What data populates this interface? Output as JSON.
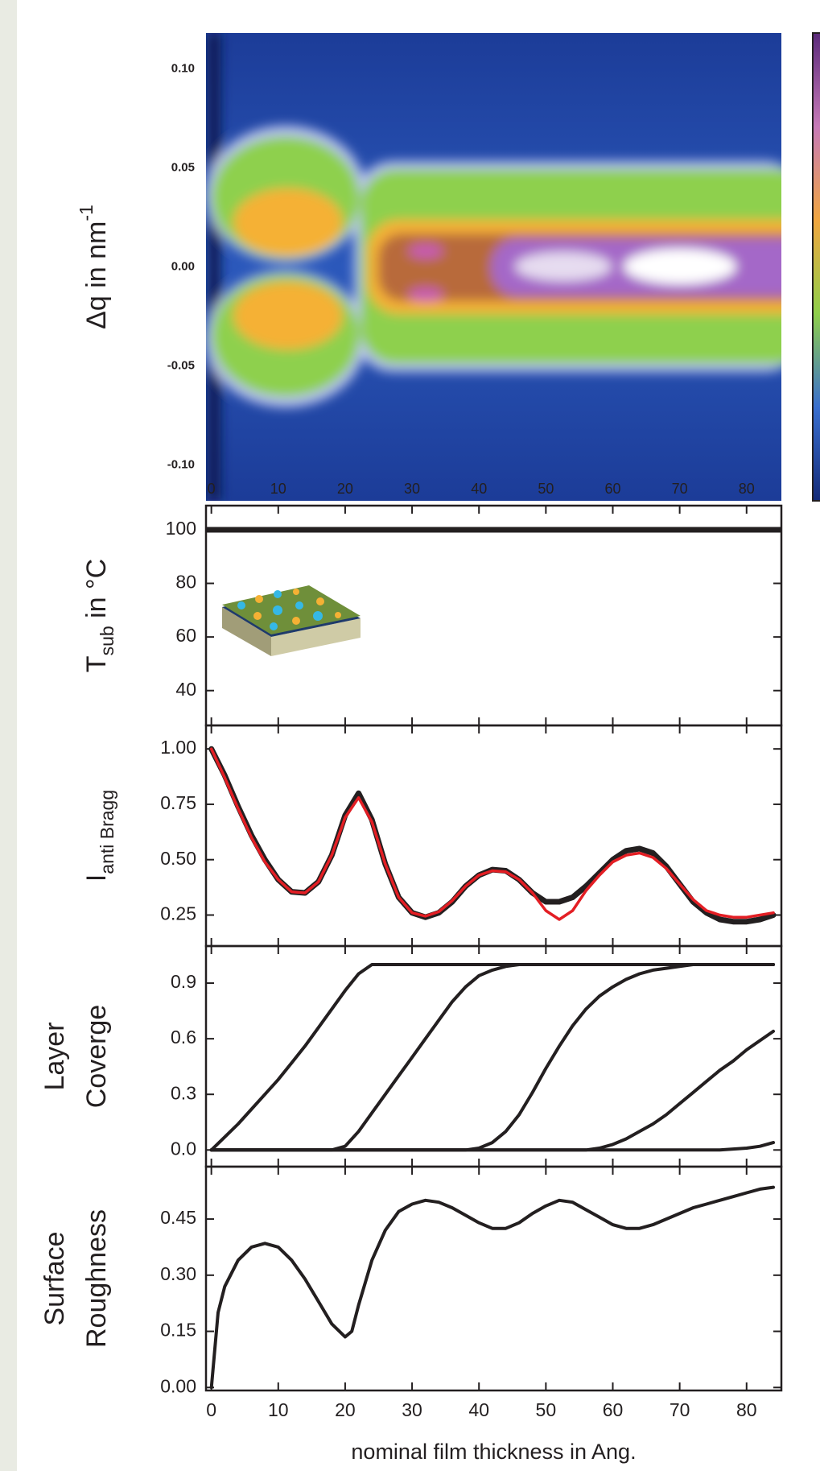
{
  "chart_data": [
    {
      "type": "heatmap",
      "ylabel": "Δq in nm",
      "ylabel_sup": "-1",
      "xlim": [
        -0.8,
        85.2
      ],
      "xticks": [
        0,
        10,
        20,
        30,
        40,
        50,
        60,
        70,
        80
      ],
      "xtick_labels": true,
      "xtick_label_color": "#7f93c4",
      "ylim": [
        -0.118,
        0.118
      ],
      "yticks": [
        {
          "value": -0.1,
          "label": "-0.10"
        },
        {
          "value": -0.05,
          "label": "-0.05"
        },
        {
          "value": 0,
          "label": "0.00"
        },
        {
          "value": 0.05,
          "label": "0.05"
        },
        {
          "value": 0.1,
          "label": "0.10"
        }
      ]
    },
    {
      "type": "line",
      "ylabel": "T",
      "ylabel_sub": "sub",
      "ylabel_suffix": " in °C",
      "xlim": [
        -0.8,
        85.2
      ],
      "xticks": [
        0,
        10,
        20,
        30,
        40,
        50,
        60,
        70,
        80
      ],
      "xtick_labels": false,
      "ylim": [
        27,
        109
      ],
      "yticks": [
        40,
        60,
        80,
        100
      ],
      "x": [
        -0.8,
        85.2
      ],
      "series": [
        {
          "color": "#231f20",
          "width": 7,
          "values": [
            100,
            100
          ]
        }
      ]
    },
    {
      "type": "line",
      "ylabel": "I",
      "ylabel_sub": "anti Bragg",
      "xlim": [
        -0.8,
        85.2
      ],
      "xticks": [
        0,
        10,
        20,
        30,
        40,
        50,
        60,
        70,
        80
      ],
      "xtick_labels": false,
      "ylim": [
        0.11,
        1.106
      ],
      "yticks": [
        0.25,
        {
          "value": 0.5,
          "label": "0.50"
        },
        0.75,
        {
          "value": 1,
          "label": "1.00"
        }
      ],
      "x": [
        0,
        2,
        4,
        6,
        8,
        10,
        12,
        14,
        16,
        18,
        20,
        22,
        24,
        26,
        28,
        30,
        32,
        34,
        36,
        38,
        40,
        42,
        44,
        46,
        48,
        50,
        52,
        54,
        56,
        58,
        60,
        62,
        64,
        66,
        68,
        70,
        72,
        74,
        76,
        78,
        80,
        82,
        84
      ],
      "series": [
        {
          "color": "#231f20",
          "width": 7,
          "values": [
            1.0,
            0.88,
            0.74,
            0.61,
            0.5,
            0.41,
            0.355,
            0.35,
            0.4,
            0.52,
            0.7,
            0.8,
            0.68,
            0.48,
            0.33,
            0.26,
            0.24,
            0.26,
            0.31,
            0.38,
            0.43,
            0.455,
            0.45,
            0.41,
            0.35,
            0.31,
            0.31,
            0.33,
            0.38,
            0.44,
            0.5,
            0.54,
            0.55,
            0.53,
            0.47,
            0.39,
            0.31,
            0.26,
            0.23,
            0.22,
            0.22,
            0.23,
            0.25
          ]
        },
        {
          "color": "#e31e24",
          "width": 3.5,
          "values": [
            1.0,
            0.87,
            0.73,
            0.6,
            0.49,
            0.41,
            0.355,
            0.35,
            0.4,
            0.52,
            0.69,
            0.78,
            0.67,
            0.48,
            0.33,
            0.26,
            0.245,
            0.265,
            0.315,
            0.38,
            0.43,
            0.45,
            0.445,
            0.41,
            0.35,
            0.27,
            0.23,
            0.27,
            0.36,
            0.43,
            0.49,
            0.52,
            0.53,
            0.51,
            0.46,
            0.39,
            0.32,
            0.27,
            0.25,
            0.24,
            0.24,
            0.25,
            0.26
          ]
        }
      ]
    },
    {
      "type": "line",
      "ylabel": [
        "Layer",
        "Coverge"
      ],
      "xlim": [
        -0.8,
        85.2
      ],
      "xticks": [
        0,
        10,
        20,
        30,
        40,
        50,
        60,
        70,
        80
      ],
      "xtick_labels": false,
      "ylim": [
        -0.09,
        1.1
      ],
      "yticks": [
        {
          "value": 0,
          "label": "0.0"
        },
        0.3,
        0.6,
        0.9
      ],
      "x": [
        0,
        2,
        4,
        6,
        8,
        10,
        12,
        14,
        16,
        18,
        20,
        22,
        24,
        26,
        28,
        30,
        32,
        34,
        36,
        38,
        40,
        42,
        44,
        46,
        48,
        50,
        52,
        54,
        56,
        58,
        60,
        62,
        64,
        66,
        68,
        70,
        72,
        74,
        76,
        78,
        80,
        82,
        84
      ],
      "series": [
        {
          "color": "#231f20",
          "width": 4,
          "values": [
            0,
            0.07,
            0.14,
            0.22,
            0.3,
            0.38,
            0.47,
            0.56,
            0.66,
            0.76,
            0.86,
            0.95,
            1,
            1,
            1,
            1,
            1,
            1,
            1,
            1,
            1,
            1,
            1,
            1,
            1,
            1,
            1,
            1,
            1,
            1,
            1,
            1,
            1,
            1,
            1,
            1,
            1,
            1,
            1,
            1,
            1,
            1,
            1
          ]
        },
        {
          "color": "#231f20",
          "width": 4,
          "values": [
            0,
            0,
            0,
            0,
            0,
            0,
            0,
            0,
            0,
            0,
            0.02,
            0.1,
            0.2,
            0.3,
            0.4,
            0.5,
            0.6,
            0.7,
            0.8,
            0.88,
            0.94,
            0.97,
            0.99,
            1,
            1,
            1,
            1,
            1,
            1,
            1,
            1,
            1,
            1,
            1,
            1,
            1,
            1,
            1,
            1,
            1,
            1,
            1,
            1
          ]
        },
        {
          "color": "#231f20",
          "width": 4,
          "values": [
            0,
            0,
            0,
            0,
            0,
            0,
            0,
            0,
            0,
            0,
            0,
            0,
            0,
            0,
            0,
            0,
            0,
            0,
            0,
            0,
            0.01,
            0.04,
            0.1,
            0.19,
            0.31,
            0.44,
            0.56,
            0.67,
            0.76,
            0.83,
            0.88,
            0.92,
            0.95,
            0.97,
            0.98,
            0.99,
            1,
            1,
            1,
            1,
            1,
            1,
            1
          ]
        },
        {
          "color": "#231f20",
          "width": 4,
          "values": [
            0,
            0,
            0,
            0,
            0,
            0,
            0,
            0,
            0,
            0,
            0,
            0,
            0,
            0,
            0,
            0,
            0,
            0,
            0,
            0,
            0,
            0,
            0,
            0,
            0,
            0,
            0,
            0,
            0,
            0.01,
            0.03,
            0.06,
            0.1,
            0.14,
            0.19,
            0.25,
            0.31,
            0.37,
            0.43,
            0.48,
            0.54,
            0.59,
            0.64
          ]
        },
        {
          "color": "#231f20",
          "width": 4,
          "values": [
            0,
            0,
            0,
            0,
            0,
            0,
            0,
            0,
            0,
            0,
            0,
            0,
            0,
            0,
            0,
            0,
            0,
            0,
            0,
            0,
            0,
            0,
            0,
            0,
            0,
            0,
            0,
            0,
            0,
            0,
            0,
            0,
            0,
            0,
            0,
            0,
            0,
            0,
            0,
            0.005,
            0.01,
            0.02,
            0.04
          ]
        }
      ]
    },
    {
      "type": "line",
      "ylabel": [
        "Surface",
        "Roughness"
      ],
      "xlabel": "nominal film thickness in Ang.",
      "xlim": [
        -0.8,
        85.2
      ],
      "xticks": [
        0,
        10,
        20,
        30,
        40,
        50,
        60,
        70,
        80
      ],
      "xtick_labels": true,
      "ylim": [
        -0.008,
        0.59
      ],
      "yticks": [
        {
          "value": 0,
          "label": "0.00"
        },
        0.15,
        {
          "value": 0.3,
          "label": "0.30"
        },
        0.45
      ],
      "x": [
        0,
        1,
        2,
        4,
        6,
        8,
        10,
        12,
        14,
        16,
        18,
        20,
        21,
        22,
        24,
        26,
        28,
        30,
        32,
        34,
        36,
        38,
        40,
        42,
        44,
        46,
        48,
        50,
        52,
        54,
        56,
        58,
        60,
        62,
        64,
        66,
        68,
        70,
        72,
        74,
        76,
        78,
        80,
        82,
        84
      ],
      "series": [
        {
          "color": "#231f20",
          "width": 4,
          "values": [
            0,
            0.2,
            0.27,
            0.34,
            0.375,
            0.385,
            0.375,
            0.34,
            0.29,
            0.23,
            0.17,
            0.135,
            0.15,
            0.22,
            0.34,
            0.42,
            0.47,
            0.49,
            0.5,
            0.495,
            0.48,
            0.46,
            0.44,
            0.425,
            0.425,
            0.44,
            0.465,
            0.485,
            0.5,
            0.495,
            0.475,
            0.455,
            0.435,
            0.425,
            0.425,
            0.435,
            0.45,
            0.465,
            0.48,
            0.49,
            0.5,
            0.51,
            0.52,
            0.53,
            0.535
          ]
        }
      ]
    }
  ]
}
